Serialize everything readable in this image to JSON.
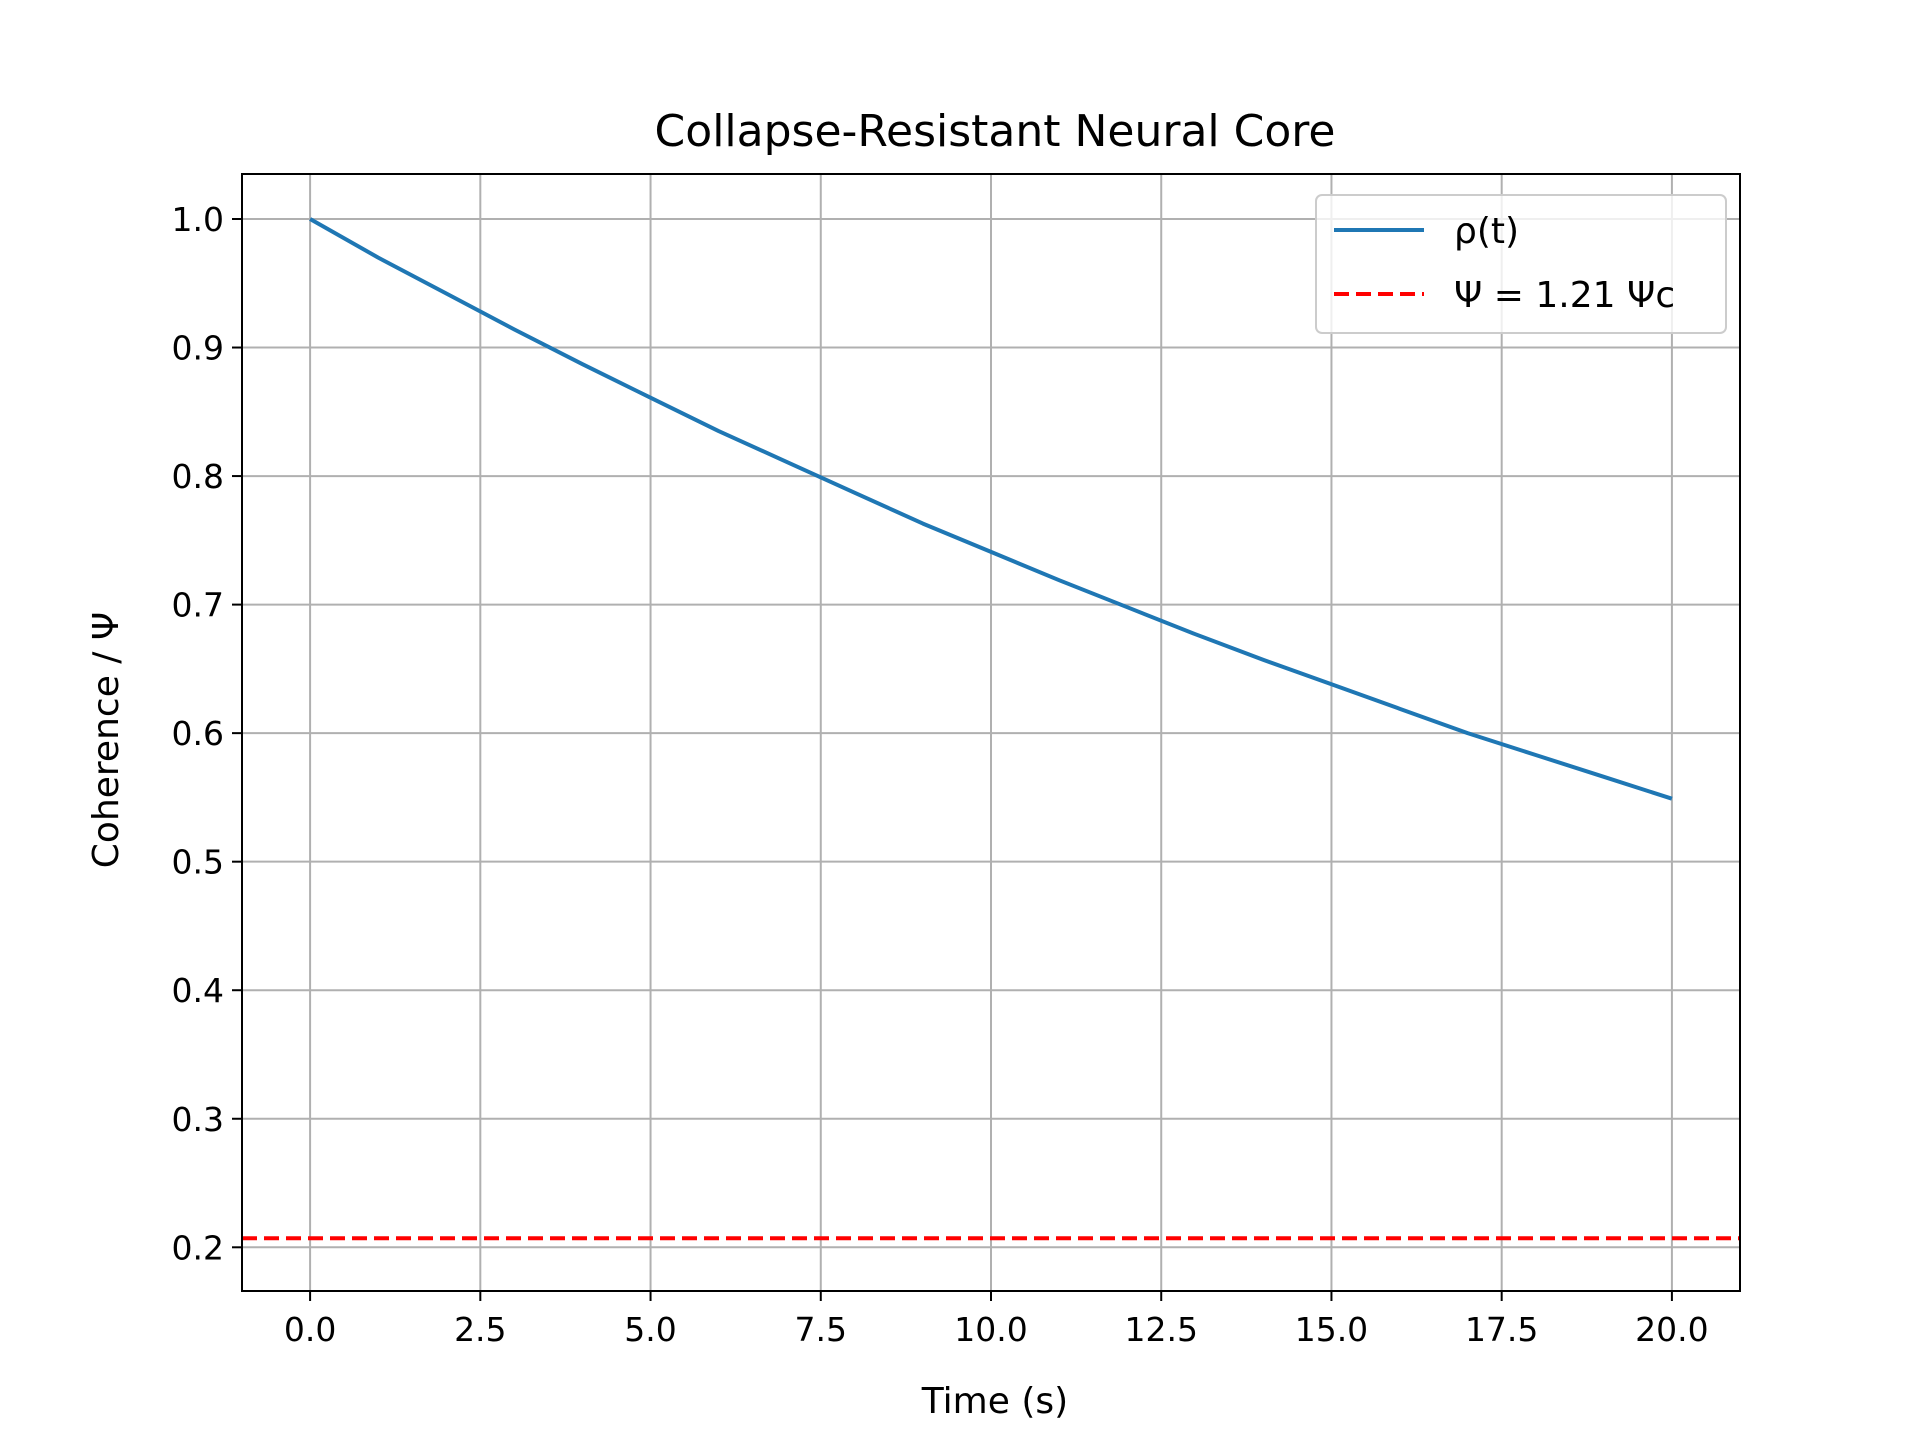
{
  "chart_data": {
    "type": "line",
    "title": "Collapse-Resistant Neural Core",
    "xlabel": "Time (s)",
    "ylabel": "Coherence / Ψ",
    "xlim": [
      -1.0,
      21.0
    ],
    "ylim": [
      0.166,
      1.035
    ],
    "xticks": [
      0,
      2.5,
      5,
      7.5,
      10,
      12.5,
      15,
      17.5,
      20
    ],
    "xtick_labels": [
      "0.0",
      "2.5",
      "5.0",
      "7.5",
      "10.0",
      "12.5",
      "15.0",
      "17.5",
      "20.0"
    ],
    "yticks": [
      0.2,
      0.3,
      0.4,
      0.5,
      0.6,
      0.7,
      0.8,
      0.9,
      1.0
    ],
    "ytick_labels": [
      "0.2",
      "0.3",
      "0.4",
      "0.5",
      "0.6",
      "0.7",
      "0.8",
      "0.9",
      "1.0"
    ],
    "grid": true,
    "legend_position": "top-right",
    "series": [
      {
        "name": "ρ(t)",
        "style": "solid",
        "color": "#1f77b4",
        "x": [
          0,
          1,
          2,
          3,
          4,
          5,
          6,
          7,
          8,
          9,
          10,
          11,
          12,
          13,
          14,
          15,
          16,
          17,
          18,
          19,
          20
        ],
        "y": [
          1.0,
          0.97,
          0.942,
          0.914,
          0.887,
          0.861,
          0.835,
          0.811,
          0.787,
          0.763,
          0.741,
          0.719,
          0.698,
          0.677,
          0.657,
          0.638,
          0.619,
          0.6,
          0.583,
          0.566,
          0.549
        ]
      },
      {
        "name": "Ψ = 1.21 Ψc",
        "style": "dashed",
        "color": "#ff0000",
        "x": [
          -1.0,
          21.0
        ],
        "y": [
          0.207,
          0.207
        ]
      }
    ]
  }
}
